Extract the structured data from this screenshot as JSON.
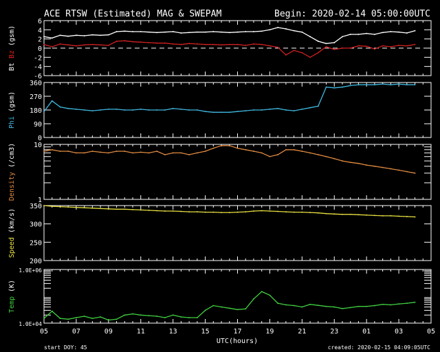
{
  "chart_data": {
    "type": "line",
    "title": "ACE RTSW (Estimated) MAG & SWEPAM",
    "begin_label": "Begin: 2020-02-14 05:00:00UTC",
    "xlabel": "UTC(hours)",
    "x_tick_labels": [
      "05",
      "07",
      "09",
      "11",
      "13",
      "15",
      "17",
      "19",
      "21",
      "23",
      "01",
      "03",
      "05"
    ],
    "xlim_hours": [
      0,
      24
    ],
    "x_step_hours": 0.5,
    "footer_left": "start DOY:  45",
    "footer_right": "created: 2020-02-15 04:09:05UTC",
    "panels": [
      {
        "ylabel_parts": [
          {
            "text": "Bt",
            "color": "#ffffff"
          },
          {
            "text": "Bz",
            "color": "#e02020"
          },
          {
            "text": "(gsm)",
            "color": "#ffffff"
          }
        ],
        "scale": "linear",
        "ylim": [
          -6,
          6
        ],
        "y_ticks": [
          {
            "v": 6,
            "label": "6"
          },
          {
            "v": 4,
            "label": "4"
          },
          {
            "v": 2,
            "label": "2"
          },
          {
            "v": 0,
            "label": "0"
          },
          {
            "v": -2,
            "label": "-2"
          },
          {
            "v": -4,
            "label": "-4"
          },
          {
            "v": -6,
            "label": "-6"
          }
        ],
        "zero_line": true,
        "series": [
          {
            "name": "Bt",
            "color": "#ffffff",
            "values": [
              2.5,
              2.2,
              2.8,
              2.6,
              2.8,
              2.7,
              2.9,
              2.8,
              2.9,
              3.6,
              3.7,
              3.6,
              3.6,
              3.5,
              3.4,
              3.5,
              3.6,
              3.3,
              3.4,
              3.5,
              3.5,
              3.6,
              3.5,
              3.4,
              3.5,
              3.6,
              3.6,
              3.7,
              4.0,
              4.5,
              4.2,
              3.8,
              3.5,
              2.5,
              1.5,
              1.0,
              1.2,
              2.5,
              3.0,
              3.0,
              3.2,
              3.0,
              3.4,
              3.6,
              3.5,
              3.3,
              3.8
            ]
          },
          {
            "name": "Bz",
            "color": "#d02020",
            "values": [
              0.8,
              0.3,
              0.9,
              0.7,
              0.5,
              0.7,
              0.8,
              0.7,
              0.6,
              1.5,
              1.6,
              1.4,
              1.3,
              1.2,
              1.1,
              1.1,
              0.9,
              0.8,
              1.0,
              0.9,
              0.8,
              0.8,
              0.7,
              0.8,
              0.8,
              0.6,
              0.9,
              0.8,
              0.5,
              0.2,
              -1.5,
              -0.5,
              -1.0,
              -2.0,
              -1.0,
              0.3,
              -0.3,
              0.0,
              0.0,
              0.5,
              0.4,
              -0.2,
              0.5,
              0.3,
              0.6,
              0.5,
              0.8
            ]
          }
        ]
      },
      {
        "ylabel_parts": [
          {
            "text": "Phi",
            "color": "#40b8e0"
          },
          {
            "text": "(gsm)",
            "color": "#ffffff"
          }
        ],
        "scale": "linear",
        "ylim": [
          0,
          360
        ],
        "y_ticks": [
          {
            "v": 360,
            "label": "360"
          },
          {
            "v": 270,
            "label": "270"
          },
          {
            "v": 180,
            "label": "180"
          },
          {
            "v": 90,
            "label": "90"
          },
          {
            "v": 0,
            "label": "0"
          }
        ],
        "series": [
          {
            "name": "Phi",
            "color": "#40b8e0",
            "values": [
              170,
              240,
              200,
              190,
              185,
              180,
              175,
              180,
              185,
              185,
              180,
              180,
              185,
              180,
              180,
              180,
              190,
              185,
              180,
              180,
              170,
              165,
              165,
              165,
              170,
              175,
              180,
              180,
              185,
              190,
              180,
              175,
              185,
              195,
              205,
              330,
              325,
              330,
              340,
              345,
              345,
              345,
              350,
              345,
              350,
              345,
              345
            ]
          }
        ]
      },
      {
        "ylabel_parts": [
          {
            "text": "Density",
            "color": "#e08a40"
          },
          {
            "text": "(/cm3)",
            "color": "#ffffff"
          }
        ],
        "scale": "log",
        "ylim": [
          1,
          10
        ],
        "y_ticks": [
          {
            "v": 10,
            "label": "10"
          },
          {
            "v": 1,
            "label": "1"
          }
        ],
        "series": [
          {
            "name": "Density",
            "color": "#e08a40",
            "values": [
              7.5,
              8,
              7.5,
              7.5,
              7,
              7,
              7.5,
              7.2,
              7,
              7.5,
              7.5,
              7,
              7.2,
              7,
              7.5,
              6.5,
              7,
              7,
              6.5,
              7,
              7.5,
              8.5,
              9.5,
              9.5,
              8.5,
              8,
              7.5,
              7,
              6,
              6.5,
              8,
              8,
              7.5,
              7,
              6.5,
              6,
              5.5,
              5,
              4.7,
              4.5,
              4.2,
              4,
              3.8,
              3.6,
              3.4,
              3.2,
              3.0
            ]
          }
        ]
      },
      {
        "ylabel_parts": [
          {
            "text": "Speed",
            "color": "#e8e040"
          },
          {
            "text": "(km/s)",
            "color": "#ffffff"
          }
        ],
        "scale": "linear",
        "ylim": [
          200,
          350
        ],
        "y_ticks": [
          {
            "v": 350,
            "label": "350"
          },
          {
            "v": 300,
            "label": "300"
          },
          {
            "v": 250,
            "label": "250"
          },
          {
            "v": 200,
            "label": "200"
          }
        ],
        "series": [
          {
            "name": "Speed",
            "color": "#e8e040",
            "values": [
              350,
              348,
              347,
              346,
              345,
              344,
              343,
              342,
              341,
              340,
              340,
              339,
              338,
              337,
              336,
              335,
              335,
              334,
              333,
              333,
              332,
              332,
              331,
              331,
              332,
              333,
              335,
              336,
              335,
              334,
              333,
              332,
              332,
              331,
              330,
              328,
              327,
              326,
              326,
              325,
              324,
              323,
              322,
              322,
              321,
              320,
              319
            ]
          }
        ]
      },
      {
        "ylabel_parts": [
          {
            "text": "Temp",
            "color": "#40d040"
          },
          {
            "text": "(K)",
            "color": "#ffffff"
          }
        ],
        "scale": "log",
        "ylim": [
          10000,
          1000000
        ],
        "y_ticks": [
          {
            "v": 1000000,
            "label": "1.0E+06"
          },
          {
            "v": 10000,
            "label": "1.0E+04"
          }
        ],
        "series": [
          {
            "name": "Temp",
            "color": "#40d040",
            "values": [
              15000,
              28000,
              15000,
              14000,
              16000,
              18000,
              15000,
              17000,
              13000,
              14000,
              20000,
              22000,
              20000,
              19000,
              18000,
              16000,
              20000,
              17000,
              16000,
              16000,
              30000,
              45000,
              40000,
              36000,
              32000,
              34000,
              80000,
              150000,
              110000,
              55000,
              48000,
              45000,
              40000,
              50000,
              46000,
              42000,
              40000,
              35000,
              38000,
              42000,
              42000,
              45000,
              50000,
              48000,
              52000,
              55000,
              60000
            ]
          }
        ]
      }
    ]
  }
}
